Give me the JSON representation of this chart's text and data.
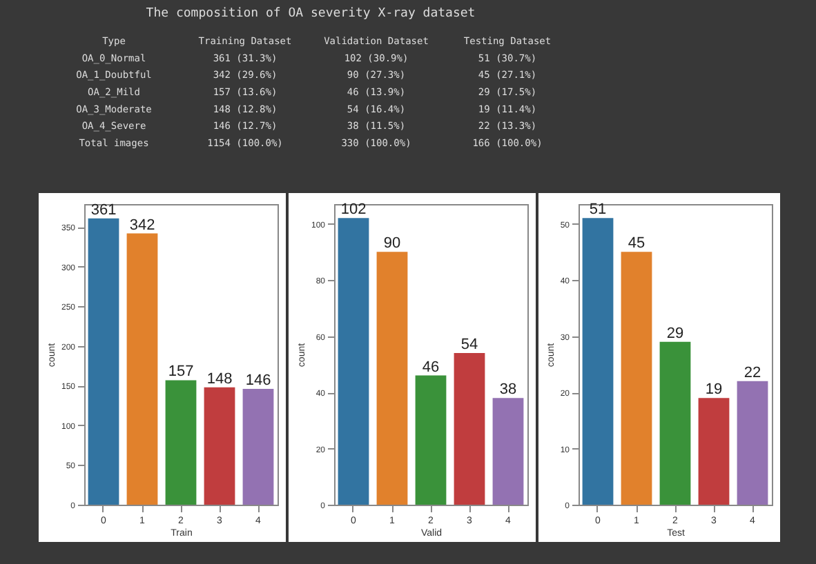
{
  "chart_data": [
    {
      "type": "other",
      "title": "The composition of OA severity X-ray dataset",
      "annotations": [
        "Type",
        "Training Dataset",
        "Validation Dataset",
        "Testing Dataset",
        "OA_0_Normal",
        "361 (31.3%)",
        "102 (30.9%)",
        "51 (30.7%)",
        "OA_1_Doubtful",
        "342 (29.6%)",
        "90 (27.3%)",
        "45 (27.1%)",
        "OA_2_Mild",
        "157 (13.6%)",
        "46 (13.9%)",
        "29 (17.5%)",
        "OA_3_Moderate",
        "148 (12.8%)",
        "54 (16.4%)",
        "19 (11.4%)",
        "OA_4_Severe",
        "146 (12.7%)",
        "38 (11.5%)",
        "22 (13.3%)",
        "Total images",
        "1154 (100.0%)",
        "330 (100.0%)",
        "166 (100.0%)"
      ]
    },
    {
      "type": "bar",
      "categories": [
        "0",
        "1",
        "2",
        "3",
        "4"
      ],
      "values": [
        361,
        342,
        157,
        148,
        146
      ],
      "colors": [
        "#3274a1",
        "#e1812c",
        "#3a923a",
        "#c03d3e",
        "#9372b2"
      ],
      "xlabel": "Train",
      "ylabel": "count",
      "ylim": [
        0,
        379
      ],
      "yticks": [
        0,
        50,
        100,
        150,
        200,
        250,
        300,
        350
      ],
      "data_labels": true
    },
    {
      "type": "bar",
      "categories": [
        "0",
        "1",
        "2",
        "3",
        "4"
      ],
      "values": [
        102,
        90,
        46,
        54,
        38
      ],
      "colors": [
        "#3274a1",
        "#e1812c",
        "#3a923a",
        "#c03d3e",
        "#9372b2"
      ],
      "xlabel": "Valid",
      "ylabel": "count",
      "ylim": [
        0,
        107
      ],
      "yticks": [
        0,
        20,
        40,
        60,
        80,
        100
      ],
      "data_labels": true
    },
    {
      "type": "bar",
      "categories": [
        "0",
        "1",
        "2",
        "3",
        "4"
      ],
      "values": [
        51,
        45,
        29,
        19,
        22
      ],
      "colors": [
        "#3274a1",
        "#e1812c",
        "#3a923a",
        "#c03d3e",
        "#9372b2"
      ],
      "xlabel": "Test",
      "ylabel": "count",
      "ylim": [
        0,
        53.5
      ],
      "yticks": [
        0,
        10,
        20,
        30,
        40,
        50
      ],
      "data_labels": true
    }
  ]
}
